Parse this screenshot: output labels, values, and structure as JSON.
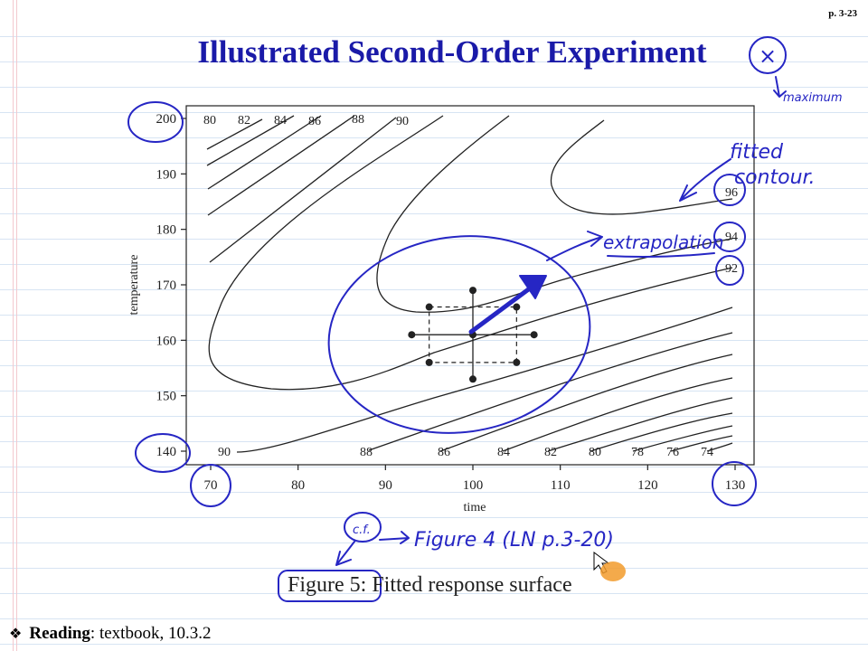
{
  "page_number": "p. 3-23",
  "slide_title": "Illustrated Second-Order Experiment",
  "figure_caption": "Figure 5: Fitted response surface",
  "reading": {
    "label": "Reading",
    "text": ": textbook, 10.3.2"
  },
  "chart_data": {
    "type": "contour",
    "xlabel": "time",
    "ylabel": "temperature",
    "xlim": [
      70,
      130
    ],
    "ylim": [
      140,
      200
    ],
    "xticks": [
      70,
      80,
      90,
      100,
      110,
      120,
      130
    ],
    "yticks": [
      140,
      150,
      160,
      170,
      180,
      190,
      200
    ],
    "top_contour_labels": [
      "80",
      "82",
      "84",
      "86",
      "88",
      "90"
    ],
    "bottom_contour_labels": [
      "90",
      "88",
      "86",
      "84",
      "82",
      "80",
      "78",
      "76",
      "74"
    ],
    "right_contour_labels": [
      "96",
      "94",
      "92"
    ],
    "design_center": {
      "time": 100,
      "temperature": 161
    },
    "design_points": [
      {
        "time": 95,
        "temperature": 166
      },
      {
        "time": 105,
        "temperature": 166
      },
      {
        "time": 95,
        "temperature": 156
      },
      {
        "time": 105,
        "temperature": 156
      },
      {
        "time": 100,
        "temperature": 161
      },
      {
        "time": 100,
        "temperature": 169
      },
      {
        "time": 100,
        "temperature": 153
      },
      {
        "time": 93,
        "temperature": 161
      },
      {
        "time": 107,
        "temperature": 161
      }
    ]
  },
  "annotations": {
    "maximum_symbol": "×",
    "maximum": "maximum",
    "fitted_contour_line1": "fitted",
    "fitted_contour_line2": "contour.",
    "extrapolation": "extrapolation",
    "cf": "c.f.",
    "figure_ref": "Figure 4 (LN p.3-20)"
  },
  "colors": {
    "title": "#1a1aa8",
    "ink": "#2626c4",
    "axes": "#222222"
  }
}
